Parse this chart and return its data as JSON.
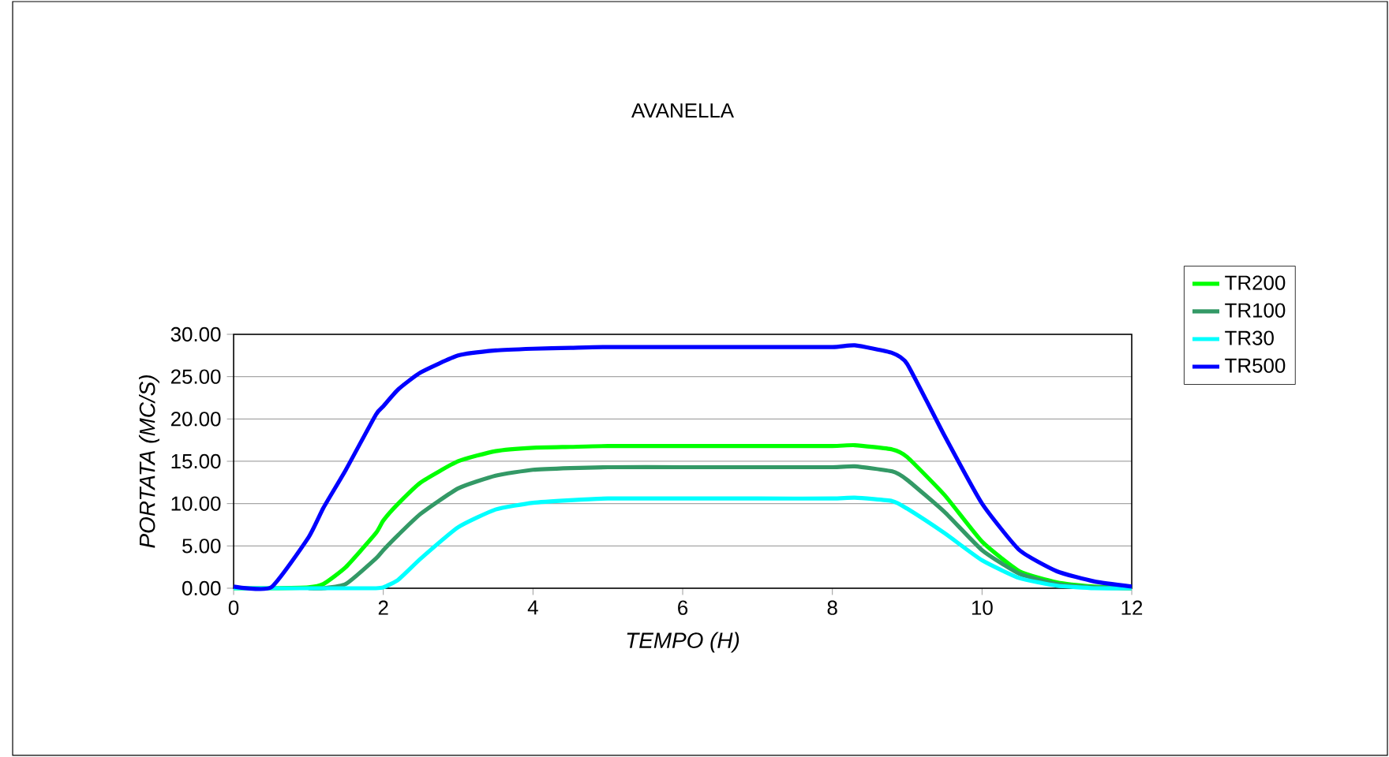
{
  "chart_data": {
    "type": "line",
    "title": "AVANELLA",
    "xlabel": "TEMPO (H)",
    "ylabel": "PORTATA (MC/S)",
    "x": [
      0,
      0.5,
      1,
      1.2,
      1.5,
      1.9,
      2,
      2.2,
      2.5,
      3,
      3.5,
      4,
      4.5,
      5,
      6,
      7,
      8,
      8.3,
      8.8,
      9,
      9.5,
      10,
      10.5,
      11,
      11.5,
      12
    ],
    "series": [
      {
        "name": "TR200",
        "color": "#00ff00",
        "values": [
          0,
          0,
          0.1,
          0.5,
          2.5,
          6.5,
          8,
          10,
          12.5,
          15,
          16.2,
          16.6,
          16.7,
          16.8,
          16.8,
          16.8,
          16.8,
          16.9,
          16.4,
          15.5,
          11,
          5.5,
          2,
          0.7,
          0.2,
          0
        ]
      },
      {
        "name": "TR100",
        "color": "#339966",
        "values": [
          null,
          null,
          0,
          0,
          0.5,
          3.5,
          4.5,
          6.3,
          8.8,
          11.8,
          13.3,
          14,
          14.2,
          14.3,
          14.3,
          14.3,
          14.3,
          14.4,
          13.8,
          12.8,
          9,
          4.5,
          1.7,
          0.5,
          0.1,
          0
        ]
      },
      {
        "name": "TR30",
        "color": "#00ffff",
        "values": [
          0,
          0,
          0,
          0,
          0,
          0,
          0.1,
          1,
          3.5,
          7.2,
          9.3,
          10.1,
          10.4,
          10.6,
          10.6,
          10.6,
          10.6,
          10.7,
          10.3,
          9.4,
          6.5,
          3.3,
          1.2,
          0.3,
          0,
          0
        ]
      },
      {
        "name": "TR500",
        "color": "#0000ff",
        "values": [
          0.2,
          0.1,
          6,
          9.5,
          14,
          20.5,
          21.5,
          23.5,
          25.5,
          27.5,
          28.1,
          28.3,
          28.4,
          28.5,
          28.5,
          28.5,
          28.5,
          28.7,
          27.8,
          26.5,
          18,
          10,
          4.5,
          2,
          0.8,
          0.2
        ]
      }
    ],
    "xlim": [
      0,
      12
    ],
    "xticks": [
      0,
      2,
      4,
      6,
      8,
      10,
      12
    ],
    "ylim": [
      0,
      30
    ],
    "yticks": [
      {
        "value": 0,
        "label": "0.00"
      },
      {
        "value": 5,
        "label": "5.00"
      },
      {
        "value": 10,
        "label": "10.00"
      },
      {
        "value": 15,
        "label": "15.00"
      },
      {
        "value": 20,
        "label": "20.00"
      },
      {
        "value": 25,
        "label": "25.00"
      },
      {
        "value": 30,
        "label": "30.00"
      }
    ],
    "grid": "y",
    "legend": "right",
    "line_style": "solid",
    "marker": "none"
  }
}
